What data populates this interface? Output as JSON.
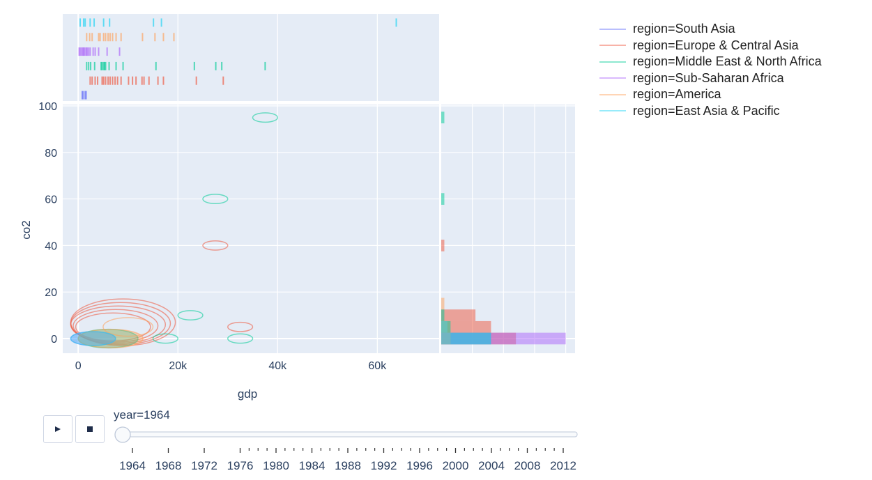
{
  "chart_data": {
    "type": "density_contour_with_marginals",
    "xlabel": "gdp",
    "ylabel": "co2",
    "xlim": [
      -3100,
      72400
    ],
    "ylim": [
      -6.3,
      100.6
    ],
    "x_ticks": [
      {
        "v": 0,
        "label": "0"
      },
      {
        "v": 20000,
        "label": "20k"
      },
      {
        "v": 40000,
        "label": "40k"
      },
      {
        "v": 60000,
        "label": "60k"
      }
    ],
    "y_ticks": [
      {
        "v": 0,
        "label": "0"
      },
      {
        "v": 20,
        "label": "20"
      },
      {
        "v": 40,
        "label": "40"
      },
      {
        "v": 60,
        "label": "60"
      },
      {
        "v": 80,
        "label": "80"
      },
      {
        "v": 100,
        "label": "100"
      }
    ],
    "grid": true,
    "legend_placement": "right",
    "series": [
      {
        "name": "region=South Asia",
        "color": "#636efa",
        "rug_gdp": [
          800,
          1000,
          1400,
          1600
        ],
        "contours": [],
        "hist_co2": []
      },
      {
        "name": "region=Europe & Central Asia",
        "color": "#EF553B",
        "rug_gdp": [
          2400,
          2800,
          3400,
          3900,
          4800,
          5100,
          5500,
          6000,
          6400,
          6900,
          7400,
          7900,
          8600,
          10100,
          10900,
          11600,
          12800,
          13200,
          14200,
          16000,
          17100,
          23700,
          29100
        ],
        "contours": [
          [
            7000,
            5,
            7500,
            6
          ],
          [
            7500,
            5.5,
            8500,
            7
          ],
          [
            8000,
            6,
            9500,
            8
          ],
          [
            8500,
            6.5,
            10000,
            9
          ],
          [
            9000,
            7,
            10500,
            10
          ],
          [
            27500,
            40,
            2500,
            2
          ],
          [
            32500,
            5,
            2500,
            2
          ]
        ],
        "hist_co2": [
          {
            "bin": 0,
            "count": 24
          },
          {
            "bin": 5,
            "count": 16
          },
          {
            "bin": 10,
            "count": 11
          },
          {
            "bin": 40,
            "count": 1
          }
        ]
      },
      {
        "name": "region=Middle East & North Africa",
        "color": "#00cc96",
        "rug_gdp": [
          1700,
          2100,
          2500,
          3300,
          4600,
          4800,
          5100,
          5300,
          5500,
          6200,
          7600,
          9000,
          15600,
          23300,
          27600,
          28800,
          37500
        ],
        "contours": [
          [
            6000,
            0,
            6000,
            4
          ],
          [
            37500,
            95,
            2500,
            2
          ],
          [
            27500,
            60,
            2500,
            2
          ],
          [
            22500,
            10,
            2500,
            2
          ],
          [
            17500,
            0,
            2500,
            2
          ],
          [
            32500,
            0,
            2500,
            2
          ]
        ],
        "hist_co2": [
          {
            "bin": 0,
            "count": 16
          },
          {
            "bin": 5,
            "count": 3
          },
          {
            "bin": 10,
            "count": 1
          },
          {
            "bin": 60,
            "count": 1
          },
          {
            "bin": 95,
            "count": 1
          }
        ]
      },
      {
        "name": "region=Sub-Saharan Africa",
        "color": "#ab63fa",
        "rug_gdp": [
          200,
          400,
          700,
          900,
          1100,
          1300,
          1600,
          1800,
          2100,
          2400,
          3000,
          3400,
          4100,
          5800,
          8300
        ],
        "contours": [
          [
            3000,
            0,
            4500,
            3
          ]
        ],
        "hist_co2": [
          {
            "bin": 0,
            "count": 40
          }
        ]
      },
      {
        "name": "region=America",
        "color": "#FFA15A",
        "rug_gdp": [
          1700,
          2300,
          2800,
          4100,
          4400,
          5100,
          5500,
          6000,
          6400,
          6900,
          7600,
          8600,
          12900,
          15400,
          17100,
          19200
        ],
        "contours": [
          [
            6500,
            0,
            6500,
            4
          ],
          [
            10000,
            5,
            5000,
            4
          ]
        ],
        "hist_co2": [
          {
            "bin": 0,
            "count": 3
          },
          {
            "bin": 5,
            "count": 2
          },
          {
            "bin": 15,
            "count": 1
          }
        ]
      },
      {
        "name": "region=East Asia & Pacific",
        "color": "#19d3f3",
        "rug_gdp": [
          400,
          1100,
          1400,
          2400,
          3200,
          5100,
          6300,
          15100,
          16700,
          63800
        ],
        "contours": [
          [
            3000,
            0,
            4500,
            3
          ]
        ],
        "hist_co2": [
          {
            "bin": 0,
            "count": 16
          },
          {
            "bin": 5,
            "count": 2
          }
        ]
      }
    ],
    "hist_bin_size": 5,
    "hist_count_range": [
      0,
      43
    ]
  },
  "slider": {
    "current_label": "year=1964",
    "value": 1964,
    "min": 1964,
    "max": 2012,
    "labels": [
      "1964",
      "1968",
      "1972",
      "1976",
      "1980",
      "1984",
      "1988",
      "1992",
      "1996",
      "2000",
      "2004",
      "2008",
      "2012"
    ]
  },
  "controls": {
    "play_icon": "play-icon",
    "stop_icon": "stop-icon"
  }
}
